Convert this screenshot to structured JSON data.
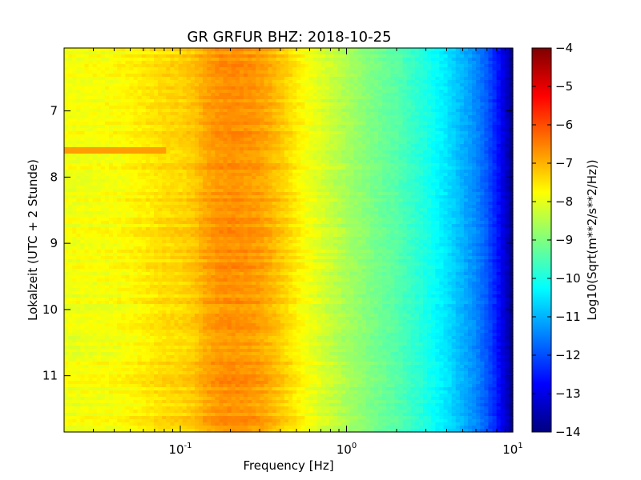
{
  "chart_data": {
    "type": "heatmap",
    "title": "GR GRFUR BHZ: 2018-10-25",
    "xlabel": "Frequency [Hz]",
    "ylabel": "Lokalzeit (UTC + 2 Stunde)",
    "colorbar_label": "Log10(Sqrt(m**2/s**2/Hz))",
    "x_scale": "log",
    "xlim": [
      0.02,
      10
    ],
    "ylim": [
      11.85,
      6.05
    ],
    "y_inverted": true,
    "clim": [
      -14,
      -4
    ],
    "colormap": "jet",
    "x_ticks": [
      {
        "value": 0.1,
        "base": "10",
        "exp": "-1"
      },
      {
        "value": 1,
        "base": "10",
        "exp": "0"
      },
      {
        "value": 10,
        "base": "10",
        "exp": "1"
      }
    ],
    "y_ticks": [
      7,
      8,
      9,
      10,
      11
    ],
    "y_tick_labels": [
      "7",
      "8",
      "9",
      "10",
      "11"
    ],
    "colorbar_ticks": [
      -4,
      -5,
      -6,
      -7,
      -8,
      -9,
      -10,
      -11,
      -12,
      -13,
      -14
    ],
    "colorbar_tick_labels": [
      "−4",
      "−5",
      "−6",
      "−7",
      "−8",
      "−9",
      "−10",
      "−11",
      "−12",
      "−13",
      "−14"
    ],
    "profile": {
      "frequency_hz": [
        0.02,
        0.04,
        0.06,
        0.08,
        0.1,
        0.12,
        0.14,
        0.17,
        0.2,
        0.25,
        0.3,
        0.35,
        0.4,
        0.5,
        0.6,
        0.8,
        1.0,
        1.5,
        2.0,
        3.0,
        4.0,
        5.0,
        6.0,
        7.0,
        8.0,
        9.0,
        10.0
      ],
      "log10_amplitude": [
        -7.9,
        -7.8,
        -7.6,
        -7.4,
        -7.35,
        -7.2,
        -6.9,
        -6.7,
        -6.65,
        -6.7,
        -6.8,
        -7.0,
        -7.2,
        -7.6,
        -7.9,
        -8.3,
        -8.6,
        -9.1,
        -9.4,
        -10.0,
        -10.5,
        -11.0,
        -11.4,
        -11.9,
        -12.5,
        -13.2,
        -14.0
      ]
    },
    "features": [
      {
        "description": "horizontal stripe at low frequencies",
        "time": 7.6,
        "freq_range": [
          0.02,
          0.08
        ],
        "log10_amplitude": -6.8
      }
    ]
  }
}
